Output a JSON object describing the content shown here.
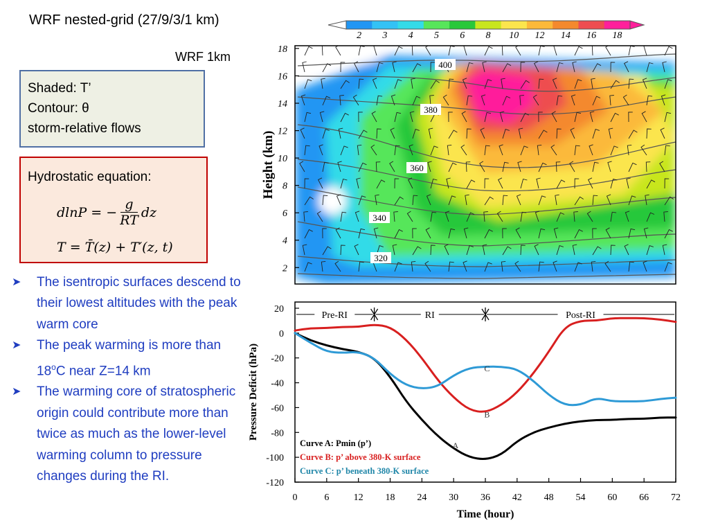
{
  "title": "WRF nested-grid (27/9/3/1 km)",
  "subtitle": "WRF 1km",
  "legend_box": {
    "line1": "Shaded: T’",
    "line2": "Contour: θ",
    "line3": "storm-relative flows"
  },
  "equation_box": {
    "title": "Hydrostatic equation:",
    "eq1_lhs": "dlnP = −",
    "eq1_num": "g",
    "eq1_den": "RT",
    "eq1_rhs": "dz",
    "eq2": "T = T̄(z) + T′(z, t)"
  },
  "bullets": [
    {
      "text": "The isentropic surfaces descend to their lowest altitudes with the peak warm core"
    },
    {
      "pre": "The peak warming is more than 18",
      "sup": "o",
      "post": "C near Z=14 km"
    },
    {
      "text": "The warming core of stratospheric origin could contribute more than twice as much as the lower-level warming column to pressure changes during the RI."
    }
  ],
  "colorbar": {
    "ticks": [
      "2",
      "3",
      "4",
      "5",
      "6",
      "8",
      "10",
      "12",
      "14",
      "16",
      "18"
    ],
    "colors": [
      "#2196f3",
      "#33c2f5",
      "#33dbe8",
      "#57e65a",
      "#28c83a",
      "#c8e61e",
      "#fbe54d",
      "#fbb93a",
      "#f4892d",
      "#ee4d50",
      "#ff1f9b"
    ]
  },
  "top_panel": {
    "ylabel": "Height (km)",
    "y_ticks": [
      "2",
      "4",
      "6",
      "8",
      "10",
      "12",
      "14",
      "16",
      "18"
    ],
    "contour_labels": [
      "400",
      "380",
      "360",
      "340",
      "320"
    ]
  },
  "chart_data": {
    "type": "line",
    "xlabel": "Time (hour)",
    "ylabel": "Pressure Deficit (hPa)",
    "xlim": [
      0,
      72
    ],
    "ylim": [
      -120,
      25
    ],
    "x_ticks": [
      0,
      6,
      12,
      18,
      24,
      30,
      36,
      42,
      48,
      54,
      60,
      66,
      72
    ],
    "y_ticks": [
      20,
      0,
      -20,
      -40,
      -60,
      -80,
      -100,
      -120
    ],
    "phases": [
      {
        "label": "Pre-RI",
        "start": 0,
        "end": 15
      },
      {
        "label": "RI",
        "start": 15,
        "end": 36
      },
      {
        "label": "Post-RI",
        "start": 36,
        "end": 72
      }
    ],
    "series": [
      {
        "name": "Curve A: Pmin (p’)",
        "marker": "A",
        "color": "#000000",
        "x": [
          0,
          3,
          6,
          9,
          12,
          15,
          18,
          21,
          24,
          27,
          30,
          33,
          36,
          39,
          42,
          45,
          48,
          51,
          54,
          57,
          60,
          63,
          66,
          69,
          72
        ],
        "y": [
          0,
          -6,
          -10,
          -13,
          -15,
          -20,
          -35,
          -55,
          -70,
          -83,
          -93,
          -100,
          -102,
          -98,
          -87,
          -80,
          -76,
          -73,
          -71,
          -70,
          -70,
          -69,
          -69,
          -68,
          -68
        ],
        "label_x": 29,
        "label_y": -90
      },
      {
        "name": "Curve B: p’ above 380-K surface",
        "marker": "B",
        "color": "#d81f1f",
        "x": [
          0,
          3,
          6,
          9,
          12,
          15,
          18,
          21,
          24,
          27,
          30,
          33,
          36,
          39,
          42,
          45,
          48,
          51,
          54,
          57,
          60,
          63,
          66,
          69,
          72
        ],
        "y": [
          2,
          4,
          4,
          5,
          5,
          7,
          5,
          -5,
          -20,
          -38,
          -52,
          -62,
          -64,
          -58,
          -48,
          -33,
          -15,
          5,
          10,
          10,
          12,
          12,
          12,
          11,
          9
        ],
        "label_x": 35,
        "label_y": -65
      },
      {
        "name": "Curve C: p’ beneath 380-K surface",
        "marker": "C",
        "color": "#2e9ad6",
        "x": [
          0,
          3,
          6,
          9,
          12,
          15,
          18,
          21,
          24,
          27,
          30,
          33,
          36,
          39,
          42,
          45,
          48,
          51,
          54,
          57,
          60,
          63,
          66,
          69,
          72
        ],
        "y": [
          0,
          -8,
          -15,
          -16,
          -15,
          -20,
          -33,
          -42,
          -45,
          -43,
          -34,
          -28,
          -27,
          -27,
          -29,
          -38,
          -50,
          -58,
          -58,
          -52,
          -55,
          -55,
          -55,
          -53,
          -52
        ],
        "label_x": 35,
        "label_y": -28
      }
    ]
  }
}
